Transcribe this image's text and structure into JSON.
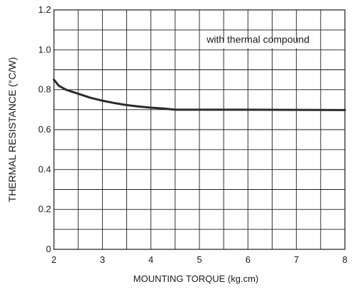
{
  "chart_data": {
    "type": "line",
    "title": "",
    "xlabel": "MOUNTING TORQUE (kg.cm)",
    "ylabel": "THERMAL RESISTANCE (°C/W)",
    "xlim": [
      2,
      8
    ],
    "ylim": [
      0,
      1.2
    ],
    "x_ticks": [
      "2",
      "3",
      "4",
      "5",
      "6",
      "7",
      "8"
    ],
    "y_ticks": [
      "0",
      "0.2",
      "0.4",
      "0.6",
      "0.8",
      "1.0",
      "1.2"
    ],
    "grid": true,
    "x_minor_step": 0.5,
    "y_minor_step": 0.1,
    "annotation": "with thermal compound",
    "series": [
      {
        "x": [
          2.0,
          2.1,
          2.25,
          2.5,
          2.75,
          3.0,
          3.25,
          3.5,
          3.75,
          4.0,
          4.25,
          4.5,
          5.0,
          6.0,
          7.0,
          8.0
        ],
        "y": [
          0.85,
          0.82,
          0.8,
          0.78,
          0.76,
          0.745,
          0.733,
          0.723,
          0.716,
          0.71,
          0.706,
          0.7,
          0.7,
          0.7,
          0.699,
          0.698
        ],
        "color": "#2a2a2a"
      }
    ]
  }
}
